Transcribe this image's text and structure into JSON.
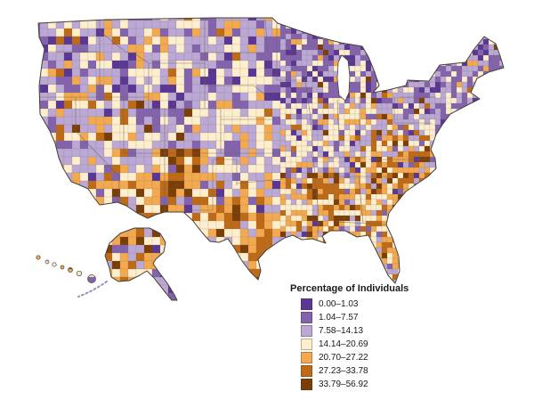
{
  "figure": {
    "kind": "choropleth-map",
    "region": "United States counties with Alaska and Hawaii insets",
    "background_color": "#ffffff"
  },
  "legend": {
    "title": "Percentage of Individuals",
    "classes": [
      {
        "label": "0.00–1.03",
        "color": "#5a3794"
      },
      {
        "label": "1.04–7.57",
        "color": "#8463ae"
      },
      {
        "label": "7.58–14.13",
        "color": "#bba8d4"
      },
      {
        "label": "14.14–20.69",
        "color": "#fdeecd"
      },
      {
        "label": "20.70–27.22",
        "color": "#f3a94f"
      },
      {
        "label": "27.23–33.78",
        "color": "#bf6a17"
      },
      {
        "label": "33.79–56.92",
        "color": "#7c3e07"
      }
    ]
  },
  "map": {
    "outline_color": "#46413b",
    "county_line_color": "#7d6f5d",
    "state_line_color": "#6a6156"
  }
}
